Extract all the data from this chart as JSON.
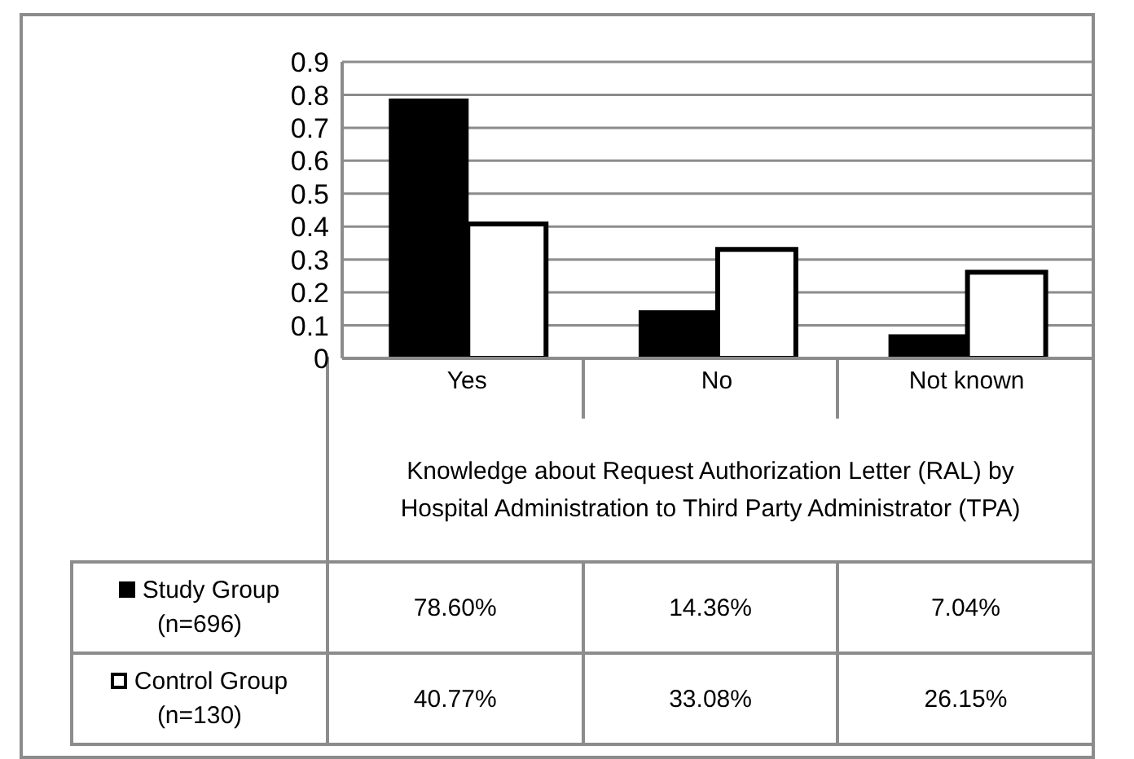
{
  "chart_data": {
    "type": "bar",
    "xlabel": "Knowledge about Request Authorization Letter (RAL) by Hospital Administration to Third Party Administrator (TPA)",
    "categories": [
      "Yes",
      "No",
      "Not known"
    ],
    "series": [
      {
        "name": "Study Group (n=696)",
        "color": "#000000",
        "values": [
          0.786,
          0.1436,
          0.0704
        ],
        "value_labels": [
          "78.60%",
          "14.36%",
          "7.04%"
        ]
      },
      {
        "name": "Control Group (n=130)",
        "color": "#ffffff",
        "values": [
          0.4077,
          0.3308,
          0.2615
        ],
        "value_labels": [
          "40.77%",
          "33.08%",
          "26.15%"
        ]
      }
    ],
    "ylim": [
      0,
      0.9
    ],
    "yticks": [
      0,
      0.1,
      0.2,
      0.3,
      0.4,
      0.5,
      0.6,
      0.7,
      0.8,
      0.9
    ],
    "grid": "y",
    "legend": "bottom left"
  }
}
